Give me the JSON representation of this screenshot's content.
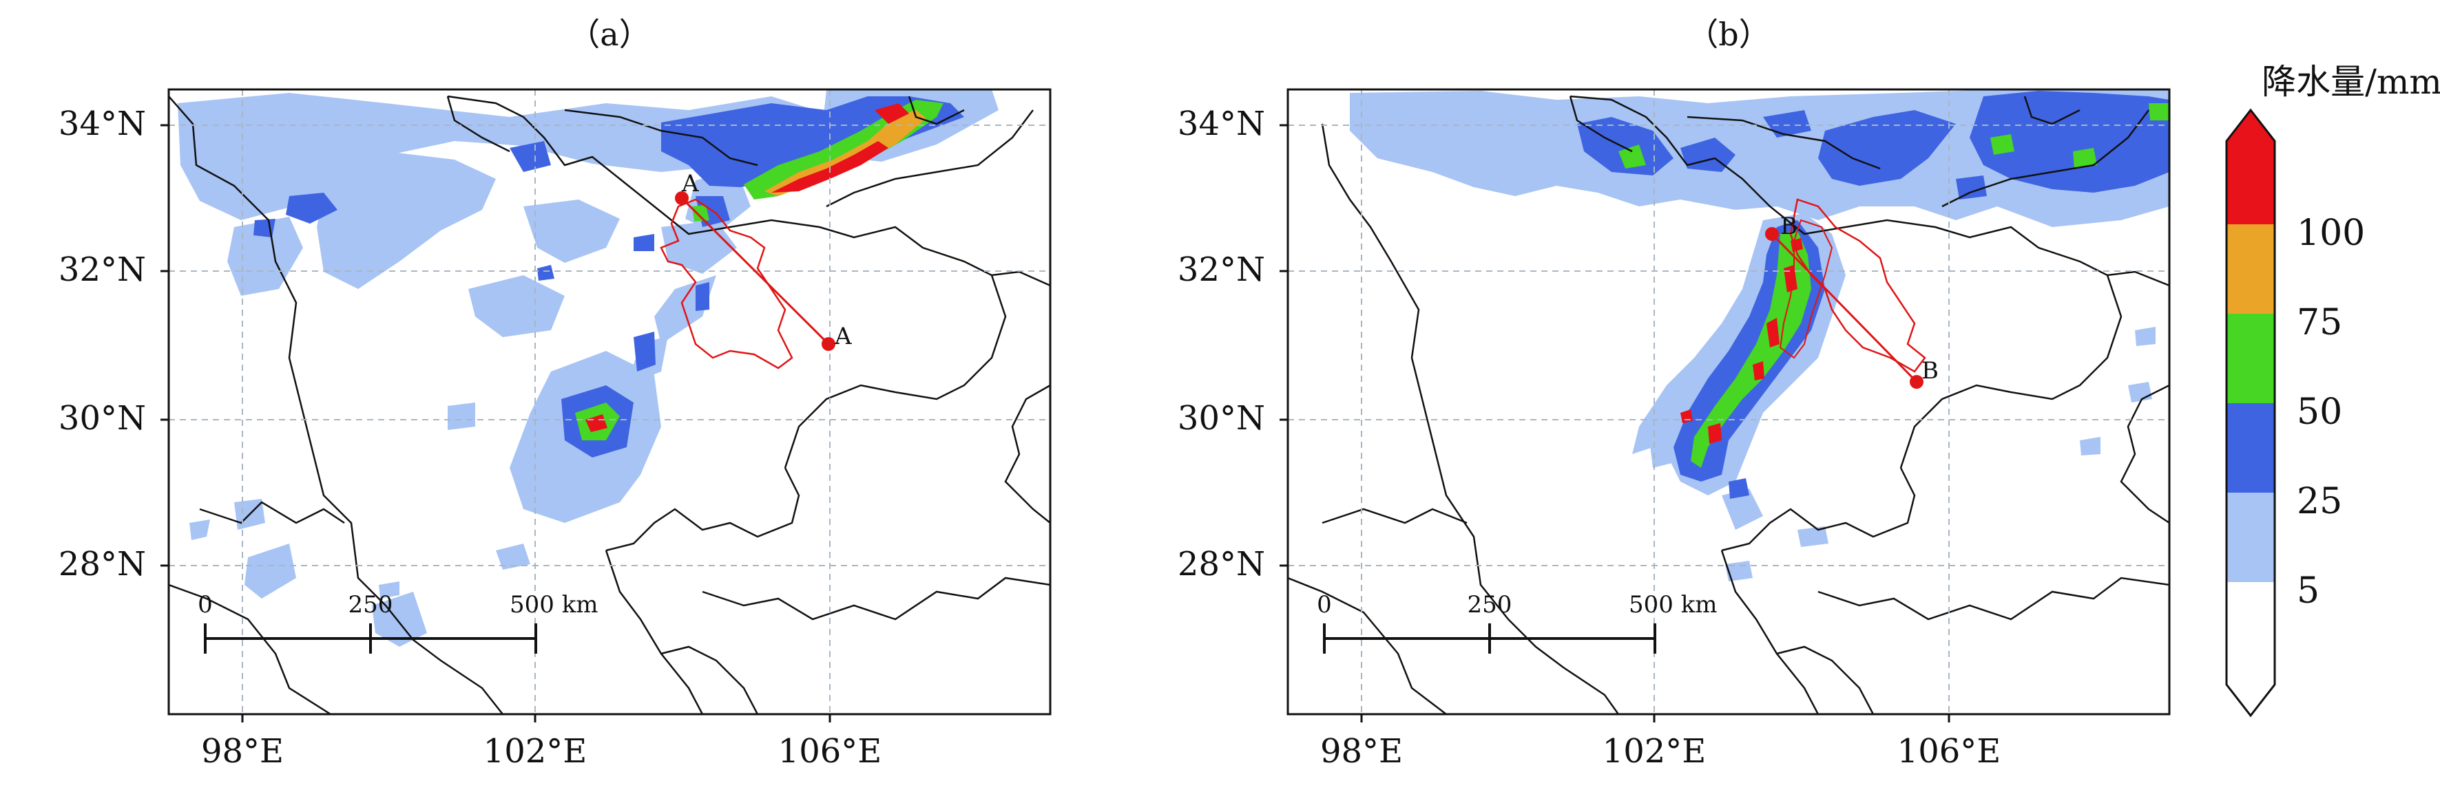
{
  "panels": [
    {
      "label": "（a）",
      "lat_ticks": [
        "34°N",
        "32°N",
        "30°N",
        "28°N"
      ],
      "lon_ticks": [
        "98°E",
        "102°E",
        "106°E"
      ],
      "lon_range": [
        97,
        109
      ],
      "lat_range": [
        26.1,
        34.5
      ],
      "tick_lats": [
        34,
        32,
        30,
        28
      ],
      "tick_lons": [
        98,
        102,
        106
      ],
      "transect": {
        "start_label": "A",
        "end_label": "A",
        "start": [
          103.9,
          33.0
        ],
        "end": [
          106.0,
          31.0
        ]
      },
      "scalebar": {
        "labels": [
          "0",
          "250",
          "500 km"
        ]
      }
    },
    {
      "label": "（b）",
      "lat_ticks": [
        "34°N",
        "32°N",
        "30°N",
        "28°N"
      ],
      "lon_ticks": [
        "98°E",
        "102°E",
        "106°E"
      ],
      "lon_range": [
        97,
        109
      ],
      "lat_range": [
        26.1,
        34.5
      ],
      "tick_lats": [
        34,
        32,
        30,
        28
      ],
      "tick_lons": [
        98,
        102,
        106
      ],
      "transect": {
        "start_label": "B",
        "end_label": "B",
        "start": [
          103.3,
          32.5
        ],
        "end": [
          105.4,
          30.5
        ]
      },
      "scalebar": {
        "labels": [
          "0",
          "250",
          "500 km"
        ]
      }
    }
  ],
  "colorbar": {
    "title": "降水量/mm",
    "tick_labels": [
      "100",
      "75",
      "50",
      "25",
      "5"
    ],
    "bins": [
      "#e8121a",
      "#eaa528",
      "#46d623",
      "#3f64e1",
      "#a8c4f4",
      "#ffffff"
    ]
  },
  "colors": {
    "level5": "#a8c4f4",
    "level25": "#3f64e1",
    "level50": "#46d623",
    "level75": "#eaa528",
    "level100": "#e8121a",
    "grid": "#a9b6c2",
    "border": "#111111",
    "outline": "#e01515"
  }
}
